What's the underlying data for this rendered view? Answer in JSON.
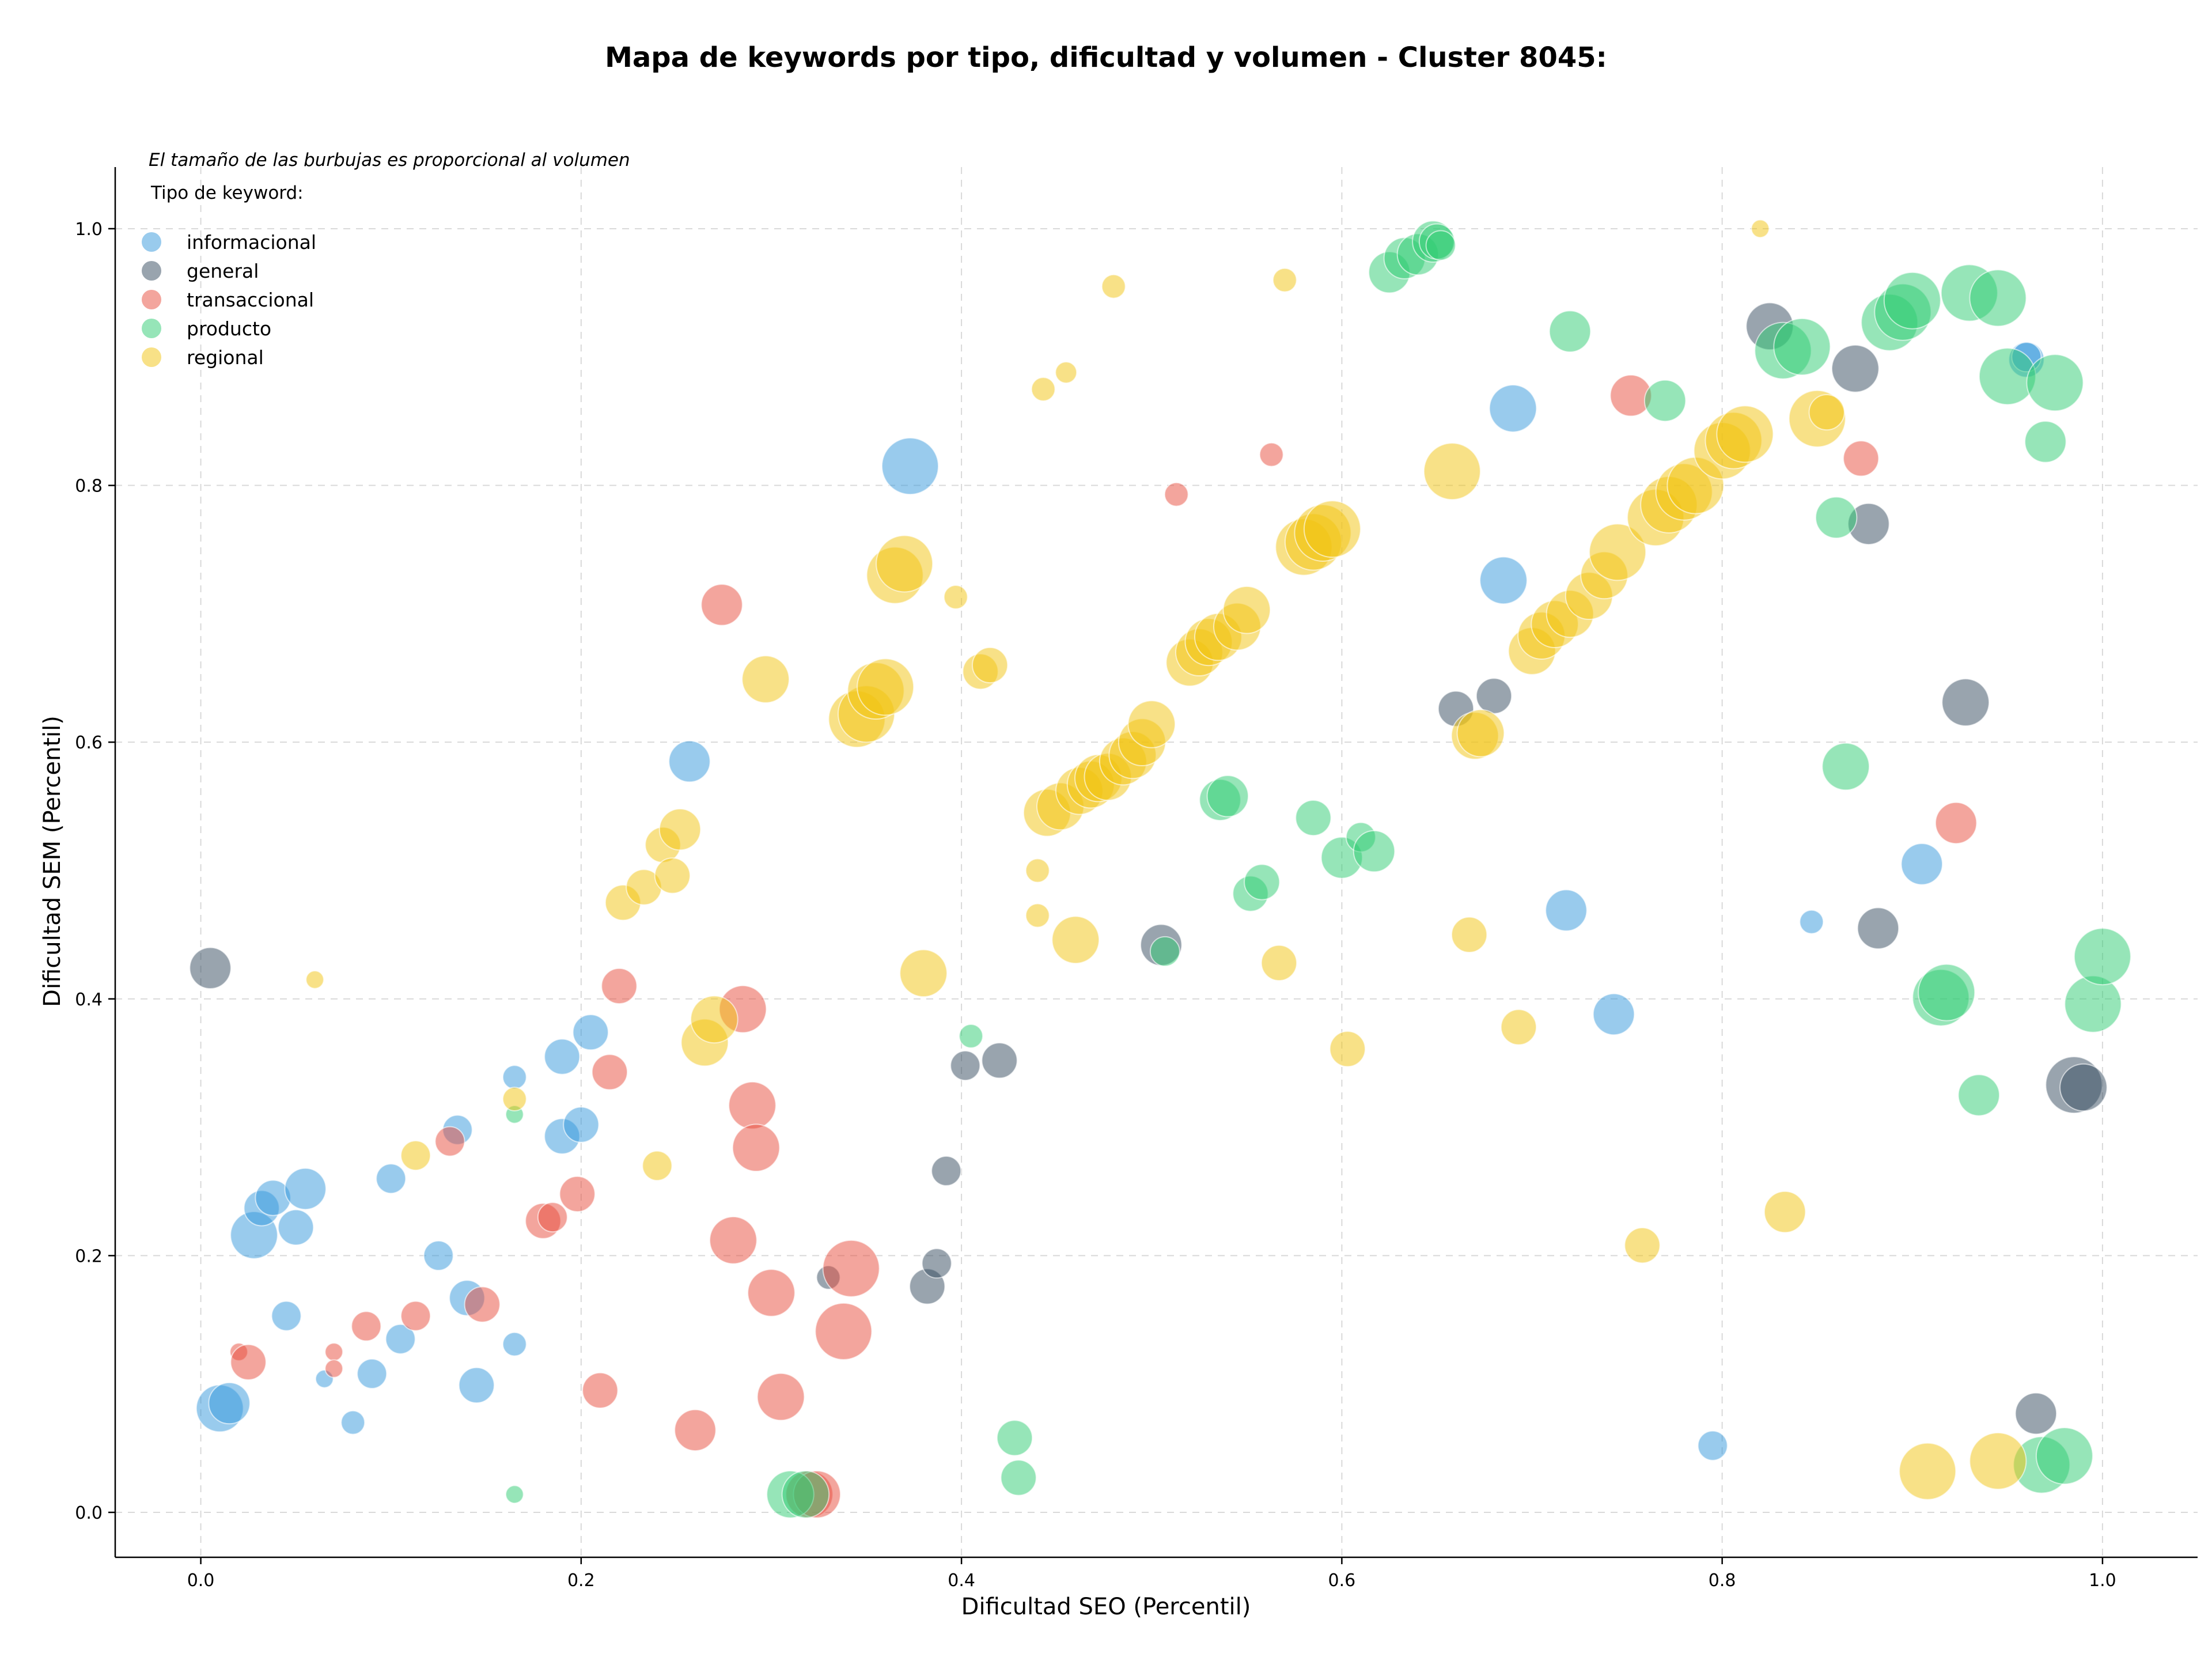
{
  "chart_data": {
    "type": "scatter",
    "title": "Mapa de keywords por tipo, dificultad y volumen - Cluster 8045:",
    "xlabel": "Dificultad SEO (Percentil)",
    "ylabel": "Dificultad SEM (Percentil)",
    "note": "El tamaño de las burbujas es proporcional al volumen",
    "legend_title": "Tipo de keyword:",
    "legend_position": "top-left",
    "xlim": [
      -0.045,
      1.05
    ],
    "ylim": [
      -0.035,
      1.048
    ],
    "xticks": [
      "0.0",
      "0.2",
      "0.4",
      "0.6",
      "0.8",
      "1.0"
    ],
    "yticks": [
      "0.0",
      "0.2",
      "0.4",
      "0.6",
      "0.8",
      "1.0"
    ],
    "grid": true,
    "bubble_alpha": 0.5,
    "series": [
      {
        "name": "informacional",
        "color": "#3498db",
        "points": [
          [
            0.01,
            0.081,
            4
          ],
          [
            0.015,
            0.085,
            3.5
          ],
          [
            0.028,
            0.216,
            4
          ],
          [
            0.032,
            0.237,
            3
          ],
          [
            0.038,
            0.245,
            3
          ],
          [
            0.05,
            0.222,
            3
          ],
          [
            0.055,
            0.252,
            3.5
          ],
          [
            0.045,
            0.153,
            2.5
          ],
          [
            0.065,
            0.104,
            1.5
          ],
          [
            0.08,
            0.07,
            2
          ],
          [
            0.09,
            0.108,
            2.5
          ],
          [
            0.1,
            0.26,
            2.5
          ],
          [
            0.105,
            0.135,
            2.5
          ],
          [
            0.125,
            0.2,
            2.5
          ],
          [
            0.135,
            0.298,
            2.5
          ],
          [
            0.14,
            0.167,
            3
          ],
          [
            0.145,
            0.099,
            3
          ],
          [
            0.165,
            0.339,
            2
          ],
          [
            0.165,
            0.131,
            2
          ],
          [
            0.19,
            0.355,
            3
          ],
          [
            0.19,
            0.293,
            3
          ],
          [
            0.2,
            0.302,
            3
          ],
          [
            0.205,
            0.374,
            3
          ],
          [
            0.257,
            0.585,
            3.5
          ],
          [
            0.373,
            0.815,
            4.8
          ],
          [
            0.69,
            0.86,
            4
          ],
          [
            0.685,
            0.726,
            4
          ],
          [
            0.718,
            0.469,
            3.5
          ],
          [
            0.743,
            0.388,
            3.5
          ],
          [
            0.795,
            0.052,
            2.5
          ],
          [
            0.847,
            0.46,
            2
          ],
          [
            0.905,
            0.505,
            3.5
          ],
          [
            0.96,
            0.898,
            3
          ],
          [
            0.96,
            0.9,
            2.5
          ]
        ]
      },
      {
        "name": "general",
        "color": "#34495e",
        "points": [
          [
            0.005,
            0.424,
            3.5
          ],
          [
            0.33,
            0.183,
            2
          ],
          [
            0.382,
            0.176,
            3
          ],
          [
            0.387,
            0.194,
            2.5
          ],
          [
            0.392,
            0.266,
            2.5
          ],
          [
            0.402,
            0.348,
            2.5
          ],
          [
            0.42,
            0.352,
            3
          ],
          [
            0.505,
            0.442,
            3.5
          ],
          [
            0.66,
            0.626,
            3
          ],
          [
            0.68,
            0.636,
            3
          ],
          [
            0.825,
            0.924,
            4
          ],
          [
            0.87,
            0.891,
            4
          ],
          [
            0.877,
            0.77,
            3.5
          ],
          [
            0.882,
            0.455,
            3.5
          ],
          [
            0.928,
            0.631,
            4
          ],
          [
            0.965,
            0.077,
            3.5
          ],
          [
            0.985,
            0.333,
            4.8
          ],
          [
            0.99,
            0.331,
            4
          ]
        ]
      },
      {
        "name": "transaccional",
        "color": "#e74c3c",
        "points": [
          [
            0.02,
            0.125,
            1.5
          ],
          [
            0.025,
            0.117,
            3
          ],
          [
            0.07,
            0.125,
            1.5
          ],
          [
            0.07,
            0.112,
            1.5
          ],
          [
            0.087,
            0.145,
            2.5
          ],
          [
            0.113,
            0.153,
            2.5
          ],
          [
            0.131,
            0.289,
            2.5
          ],
          [
            0.148,
            0.162,
            3
          ],
          [
            0.18,
            0.227,
            3
          ],
          [
            0.185,
            0.23,
            2.5
          ],
          [
            0.198,
            0.248,
            3
          ],
          [
            0.21,
            0.095,
            3
          ],
          [
            0.215,
            0.343,
            3
          ],
          [
            0.22,
            0.41,
            3
          ],
          [
            0.26,
            0.064,
            3.5
          ],
          [
            0.274,
            0.707,
            3.5
          ],
          [
            0.28,
            0.212,
            4
          ],
          [
            0.285,
            0.392,
            4
          ],
          [
            0.29,
            0.317,
            4
          ],
          [
            0.292,
            0.284,
            4
          ],
          [
            0.3,
            0.171,
            4
          ],
          [
            0.305,
            0.09,
            4
          ],
          [
            0.32,
            0.014,
            4
          ],
          [
            0.324,
            0.014,
            4
          ],
          [
            0.338,
            0.141,
            4.8
          ],
          [
            0.342,
            0.19,
            4.8
          ],
          [
            0.513,
            0.793,
            2
          ],
          [
            0.563,
            0.824,
            2
          ],
          [
            0.752,
            0.87,
            3.5
          ],
          [
            0.873,
            0.821,
            3
          ],
          [
            0.923,
            0.537,
            3.5
          ]
        ]
      },
      {
        "name": "producto",
        "color": "#2ecc71",
        "points": [
          [
            0.165,
            0.31,
            1.5
          ],
          [
            0.165,
            0.014,
            1.5
          ],
          [
            0.31,
            0.014,
            4
          ],
          [
            0.318,
            0.014,
            4
          ],
          [
            0.405,
            0.371,
            2
          ],
          [
            0.428,
            0.058,
            3
          ],
          [
            0.43,
            0.027,
            3
          ],
          [
            0.507,
            0.437,
            2.5
          ],
          [
            0.536,
            0.555,
            3.5
          ],
          [
            0.54,
            0.558,
            3.5
          ],
          [
            0.552,
            0.482,
            3
          ],
          [
            0.558,
            0.491,
            3
          ],
          [
            0.585,
            0.541,
            3
          ],
          [
            0.6,
            0.51,
            3.5
          ],
          [
            0.61,
            0.526,
            2.5
          ],
          [
            0.617,
            0.515,
            3.5
          ],
          [
            0.625,
            0.966,
            3.5
          ],
          [
            0.633,
            0.977,
            3.5
          ],
          [
            0.64,
            0.98,
            3.5
          ],
          [
            0.648,
            0.99,
            3.5
          ],
          [
            0.65,
            0.99,
            3
          ],
          [
            0.652,
            0.987,
            2.5
          ],
          [
            0.72,
            0.92,
            3.5
          ],
          [
            0.77,
            0.866,
            3.5
          ],
          [
            0.832,
            0.905,
            4.8
          ],
          [
            0.842,
            0.908,
            4.8
          ],
          [
            0.86,
            0.775,
            3.5
          ],
          [
            0.865,
            0.581,
            4
          ],
          [
            0.888,
            0.927,
            4.8
          ],
          [
            0.895,
            0.935,
            4.8
          ],
          [
            0.9,
            0.944,
            4.8
          ],
          [
            0.93,
            0.95,
            4.8
          ],
          [
            0.945,
            0.946,
            4.8
          ],
          [
            0.935,
            0.325,
            3.5
          ],
          [
            0.915,
            0.401,
            4.8
          ],
          [
            0.918,
            0.405,
            4.8
          ],
          [
            0.95,
            0.885,
            4.8
          ],
          [
            0.97,
            0.834,
            3.5
          ],
          [
            0.975,
            0.88,
            4.8
          ],
          [
            0.968,
            0.037,
            4.8
          ],
          [
            0.98,
            0.044,
            4.8
          ],
          [
            0.995,
            0.396,
            4.8
          ],
          [
            1.0,
            0.433,
            4.8
          ]
        ]
      },
      {
        "name": "regional",
        "color": "#f1c40f",
        "points": [
          [
            0.06,
            0.415,
            1.5
          ],
          [
            0.113,
            0.278,
            2.5
          ],
          [
            0.165,
            0.322,
            2
          ],
          [
            0.222,
            0.475,
            3
          ],
          [
            0.233,
            0.487,
            3
          ],
          [
            0.24,
            0.27,
            2.5
          ],
          [
            0.243,
            0.52,
            3
          ],
          [
            0.248,
            0.496,
            3
          ],
          [
            0.252,
            0.532,
            3.5
          ],
          [
            0.265,
            0.366,
            4
          ],
          [
            0.27,
            0.384,
            4
          ],
          [
            0.297,
            0.649,
            4
          ],
          [
            0.345,
            0.618,
            4.8
          ],
          [
            0.35,
            0.622,
            4.8
          ],
          [
            0.355,
            0.64,
            4.8
          ],
          [
            0.36,
            0.643,
            4.8
          ],
          [
            0.365,
            0.73,
            4.8
          ],
          [
            0.37,
            0.739,
            4.8
          ],
          [
            0.38,
            0.42,
            4
          ],
          [
            0.397,
            0.713,
            2
          ],
          [
            0.41,
            0.655,
            3
          ],
          [
            0.415,
            0.66,
            3
          ],
          [
            0.44,
            0.5,
            2
          ],
          [
            0.44,
            0.465,
            2
          ],
          [
            0.443,
            0.875,
            2
          ],
          [
            0.455,
            0.888,
            1.8
          ],
          [
            0.445,
            0.545,
            4
          ],
          [
            0.452,
            0.55,
            4
          ],
          [
            0.46,
            0.446,
            4
          ],
          [
            0.462,
            0.562,
            4
          ],
          [
            0.468,
            0.567,
            4
          ],
          [
            0.472,
            0.572,
            4
          ],
          [
            0.477,
            0.573,
            4
          ],
          [
            0.48,
            0.955,
            2
          ],
          [
            0.485,
            0.585,
            4
          ],
          [
            0.49,
            0.59,
            4
          ],
          [
            0.495,
            0.6,
            4
          ],
          [
            0.5,
            0.614,
            4
          ],
          [
            0.52,
            0.662,
            4
          ],
          [
            0.525,
            0.67,
            4
          ],
          [
            0.53,
            0.678,
            4
          ],
          [
            0.535,
            0.682,
            4
          ],
          [
            0.545,
            0.69,
            4
          ],
          [
            0.55,
            0.703,
            4
          ],
          [
            0.567,
            0.428,
            3
          ],
          [
            0.57,
            0.96,
            2
          ],
          [
            0.58,
            0.752,
            4.8
          ],
          [
            0.585,
            0.756,
            4.8
          ],
          [
            0.59,
            0.763,
            4.8
          ],
          [
            0.595,
            0.766,
            4.8
          ],
          [
            0.603,
            0.361,
            3
          ],
          [
            0.658,
            0.811,
            4.8
          ],
          [
            0.667,
            0.45,
            3
          ],
          [
            0.67,
            0.605,
            4
          ],
          [
            0.673,
            0.607,
            4
          ],
          [
            0.693,
            0.378,
            3
          ],
          [
            0.7,
            0.671,
            4
          ],
          [
            0.705,
            0.683,
            4
          ],
          [
            0.712,
            0.692,
            4
          ],
          [
            0.72,
            0.7,
            4
          ],
          [
            0.73,
            0.714,
            4
          ],
          [
            0.738,
            0.73,
            4
          ],
          [
            0.745,
            0.748,
            4.8
          ],
          [
            0.758,
            0.208,
            3
          ],
          [
            0.765,
            0.775,
            4.8
          ],
          [
            0.772,
            0.785,
            4.8
          ],
          [
            0.78,
            0.795,
            4.8
          ],
          [
            0.786,
            0.8,
            4.8
          ],
          [
            0.8,
            0.827,
            4.8
          ],
          [
            0.806,
            0.835,
            4.8
          ],
          [
            0.812,
            0.84,
            4.8
          ],
          [
            0.82,
            1.0,
            1.5
          ],
          [
            0.833,
            0.234,
            3.5
          ],
          [
            0.85,
            0.852,
            4.8
          ],
          [
            0.855,
            0.857,
            3
          ],
          [
            0.908,
            0.032,
            4.8
          ],
          [
            0.945,
            0.04,
            4.8
          ]
        ]
      }
    ]
  }
}
